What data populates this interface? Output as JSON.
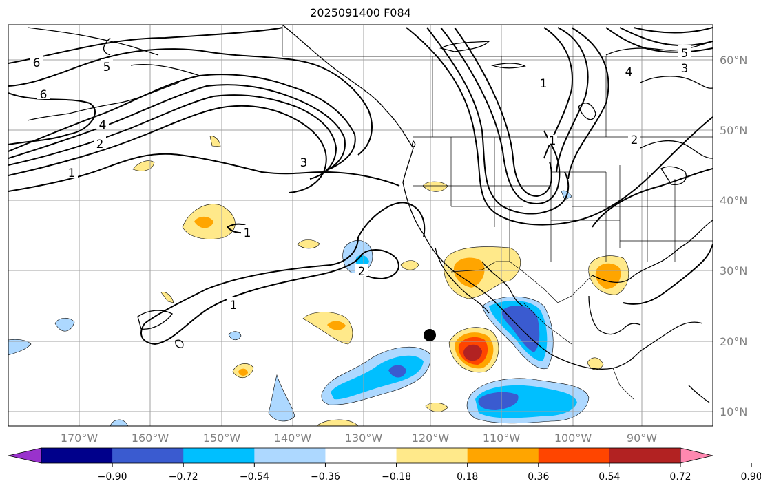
{
  "title": "2025091400 F084",
  "map": {
    "lon_labels": [
      "170°W",
      "160°W",
      "150°W",
      "140°W",
      "130°W",
      "120°W",
      "110°W",
      "100°W",
      "90°W"
    ],
    "lat_labels": [
      "60°N",
      "50°N",
      "40°N",
      "30°N",
      "20°N",
      "10°N"
    ],
    "contour_labels": [
      "6",
      "5",
      "6",
      "4",
      "2",
      "1",
      "3",
      "1",
      "2",
      "1",
      "1",
      "4",
      "5",
      "3",
      "2",
      "1"
    ],
    "colorbar": {
      "colors": [
        "#9932cc",
        "#00008b",
        "#3a5bd0",
        "#00bfff",
        "#add8ff",
        "#ffffff",
        "#ffe98a",
        "#ffa500",
        "#ff4500",
        "#b22222",
        "#ff88b0"
      ],
      "ticks": [
        "−0.90",
        "−0.72",
        "−0.54",
        "−0.36",
        "−0.18",
        "0.18",
        "0.36",
        "0.54",
        "0.72",
        "0.90"
      ]
    },
    "marker": "storm-center"
  }
}
